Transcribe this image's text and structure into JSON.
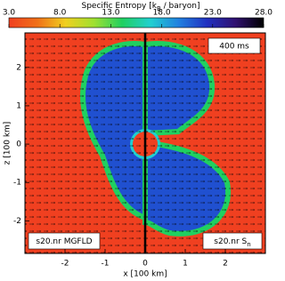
{
  "chart_data": {
    "type": "heatmap",
    "colorbar_title": [
      "Specific Entropy [k",
      "B",
      " / baryon]"
    ],
    "clim": [
      3,
      28
    ],
    "cticks": [
      {
        "value": 3,
        "label": "3.0"
      },
      {
        "value": 8,
        "label": "8.0"
      },
      {
        "value": 13,
        "label": "13.0"
      },
      {
        "value": 18,
        "label": "18.0"
      },
      {
        "value": 23,
        "label": "23.0"
      },
      {
        "value": 28,
        "label": "28.0"
      }
    ],
    "colormap": [
      "#f04020",
      "#f07018",
      "#f0d020",
      "#a0e030",
      "#20d060",
      "#20d0d0",
      "#2080e0",
      "#2030c0",
      "#301070",
      "#000000"
    ],
    "xlabel": "x [100 km]",
    "ylabel": "z [100 km]",
    "xlim": [
      -3,
      3
    ],
    "ylim": [
      -2.85,
      2.9
    ],
    "xticks": [
      -2,
      -1,
      0,
      1,
      2
    ],
    "yticks": [
      -2,
      -1,
      0,
      1,
      2
    ],
    "annotations": [
      {
        "text": [
          "400 ms"
        ]
      },
      {
        "text": [
          "s20.nr MGFLD"
        ]
      },
      {
        "text": [
          "s20.nr S",
          "n"
        ]
      }
    ]
  }
}
